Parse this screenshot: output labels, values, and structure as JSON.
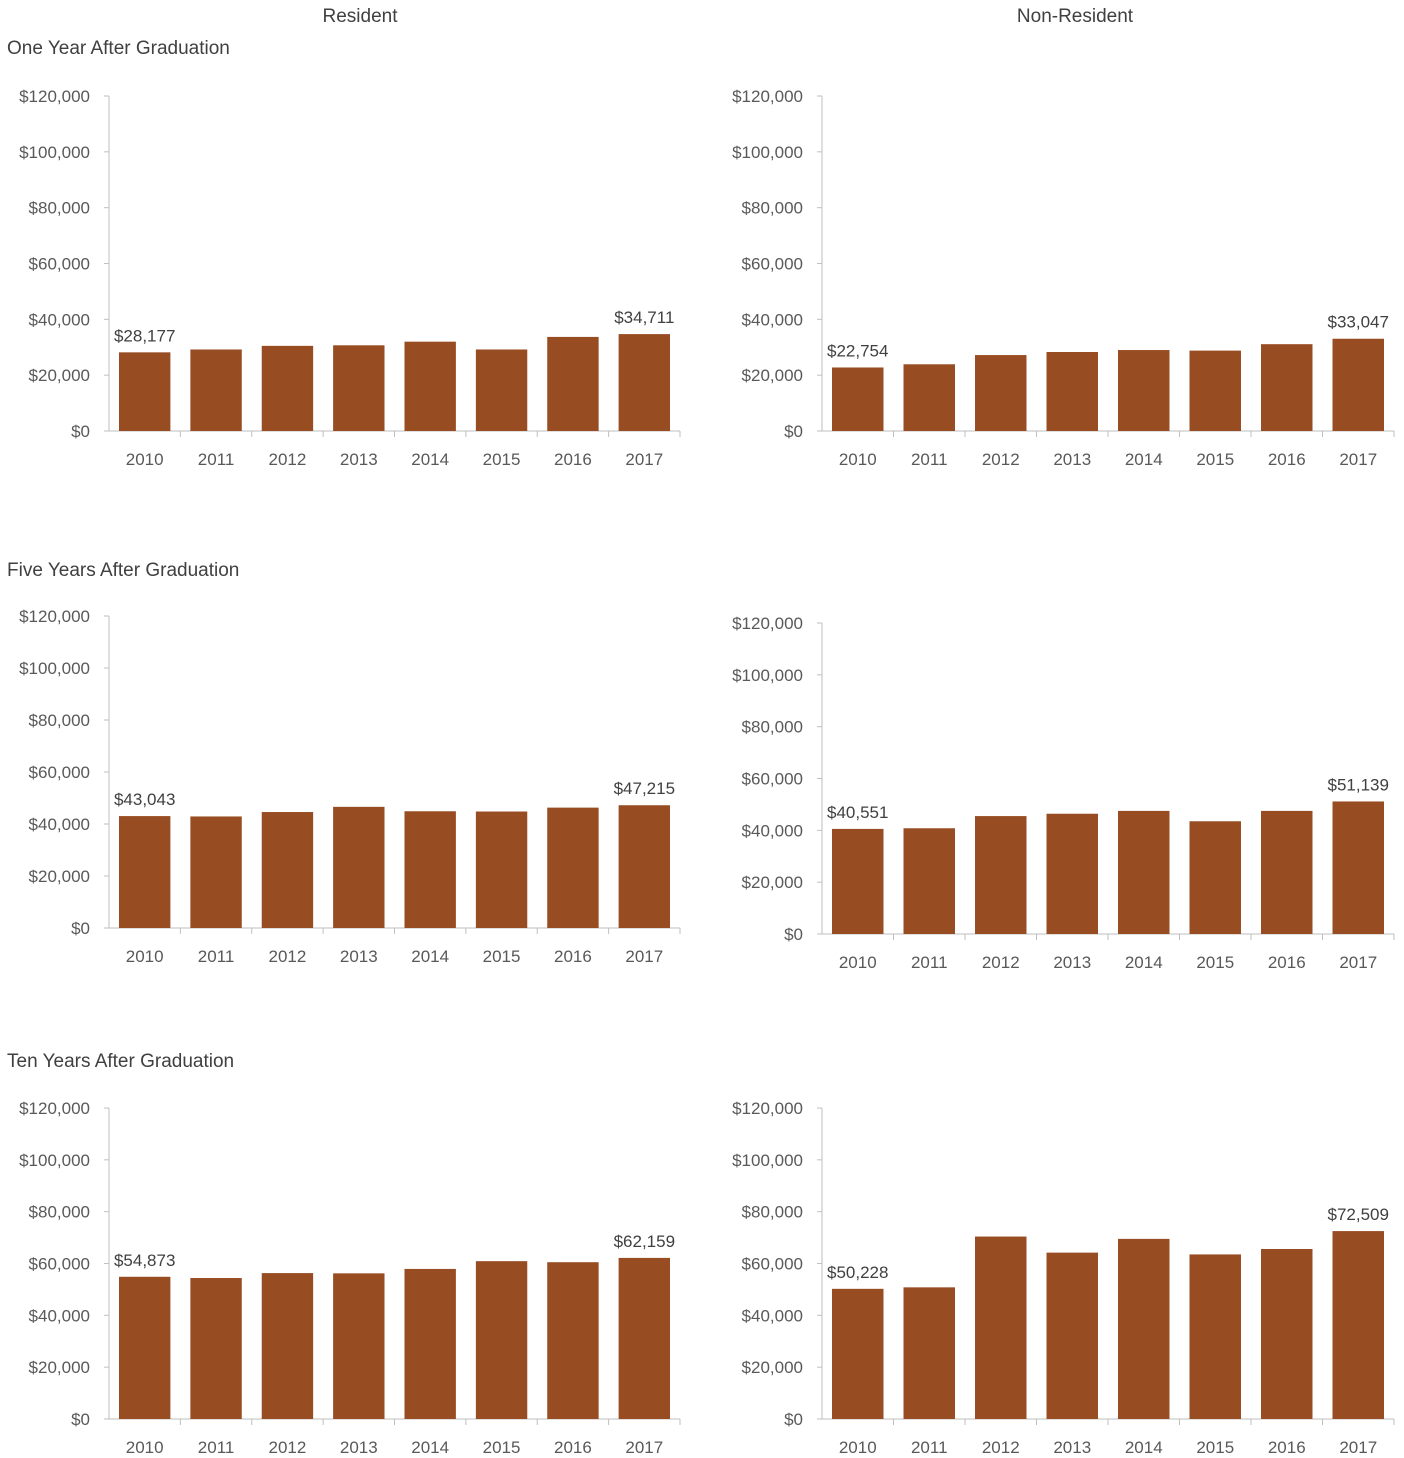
{
  "headers": {
    "resident": "Resident",
    "nonresident": "Non-Resident"
  },
  "rows": [
    {
      "title": "One Year After Graduation"
    },
    {
      "title": "Five Years After Graduation"
    },
    {
      "title": "Ten Years After Graduation"
    }
  ],
  "colors": {
    "bar": "#974c22",
    "axis": "#bfbfbf"
  },
  "chart_data": [
    {
      "id": "one-year-resident",
      "type": "bar",
      "categories": [
        "2010",
        "2011",
        "2012",
        "2013",
        "2014",
        "2015",
        "2016",
        "2017"
      ],
      "values": [
        28177,
        29200,
        30500,
        30700,
        32000,
        29200,
        33700,
        34711
      ],
      "data_labels": {
        "0": "$28,177",
        "7": "$34,711"
      },
      "yticks": [
        "$0",
        "$20,000",
        "$40,000",
        "$60,000",
        "$80,000",
        "$100,000",
        "$120,000"
      ],
      "ylim": [
        0,
        120000
      ]
    },
    {
      "id": "one-year-nonresident",
      "type": "bar",
      "categories": [
        "2010",
        "2011",
        "2012",
        "2013",
        "2014",
        "2015",
        "2016",
        "2017"
      ],
      "values": [
        22754,
        23900,
        27200,
        28300,
        29000,
        28800,
        31100,
        33047
      ],
      "data_labels": {
        "0": "$22,754",
        "7": "$33,047"
      },
      "yticks": [
        "$0",
        "$20,000",
        "$40,000",
        "$60,000",
        "$80,000",
        "$100,000",
        "$120,000"
      ],
      "ylim": [
        0,
        120000
      ]
    },
    {
      "id": "five-year-resident",
      "type": "bar",
      "categories": [
        "2010",
        "2011",
        "2012",
        "2013",
        "2014",
        "2015",
        "2016",
        "2017"
      ],
      "values": [
        43043,
        42900,
        44600,
        46600,
        44900,
        44800,
        46300,
        47215
      ],
      "data_labels": {
        "0": "$43,043",
        "7": "$47,215"
      },
      "yticks": [
        "$0",
        "$20,000",
        "$40,000",
        "$60,000",
        "$80,000",
        "$100,000",
        "$120,000"
      ],
      "ylim": [
        0,
        120000
      ]
    },
    {
      "id": "five-year-nonresident",
      "type": "bar",
      "categories": [
        "2010",
        "2011",
        "2012",
        "2013",
        "2014",
        "2015",
        "2016",
        "2017"
      ],
      "values": [
        40551,
        40800,
        45500,
        46400,
        47500,
        43500,
        47500,
        51139
      ],
      "data_labels": {
        "0": "$40,551",
        "7": "$51,139"
      },
      "yticks": [
        "$0",
        "$20,000",
        "$40,000",
        "$60,000",
        "$80,000",
        "$100,000",
        "$120,000"
      ],
      "ylim": [
        0,
        120000
      ]
    },
    {
      "id": "ten-year-resident",
      "type": "bar",
      "categories": [
        "2010",
        "2011",
        "2012",
        "2013",
        "2014",
        "2015",
        "2016",
        "2017"
      ],
      "values": [
        54873,
        54400,
        56300,
        56200,
        57900,
        60900,
        60500,
        62159
      ],
      "data_labels": {
        "0": "$54,873",
        "7": "$62,159"
      },
      "yticks": [
        "$0",
        "$20,000",
        "$40,000",
        "$60,000",
        "$80,000",
        "$100,000",
        "$120,000"
      ],
      "ylim": [
        0,
        120000
      ]
    },
    {
      "id": "ten-year-nonresident",
      "type": "bar",
      "categories": [
        "2010",
        "2011",
        "2012",
        "2013",
        "2014",
        "2015",
        "2016",
        "2017"
      ],
      "values": [
        50228,
        50800,
        70400,
        64200,
        69500,
        63500,
        65600,
        72509
      ],
      "data_labels": {
        "0": "$50,228",
        "7": "$72,509"
      },
      "yticks": [
        "$0",
        "$20,000",
        "$40,000",
        "$60,000",
        "$80,000",
        "$100,000",
        "$120,000"
      ],
      "ylim": [
        0,
        120000
      ]
    }
  ]
}
